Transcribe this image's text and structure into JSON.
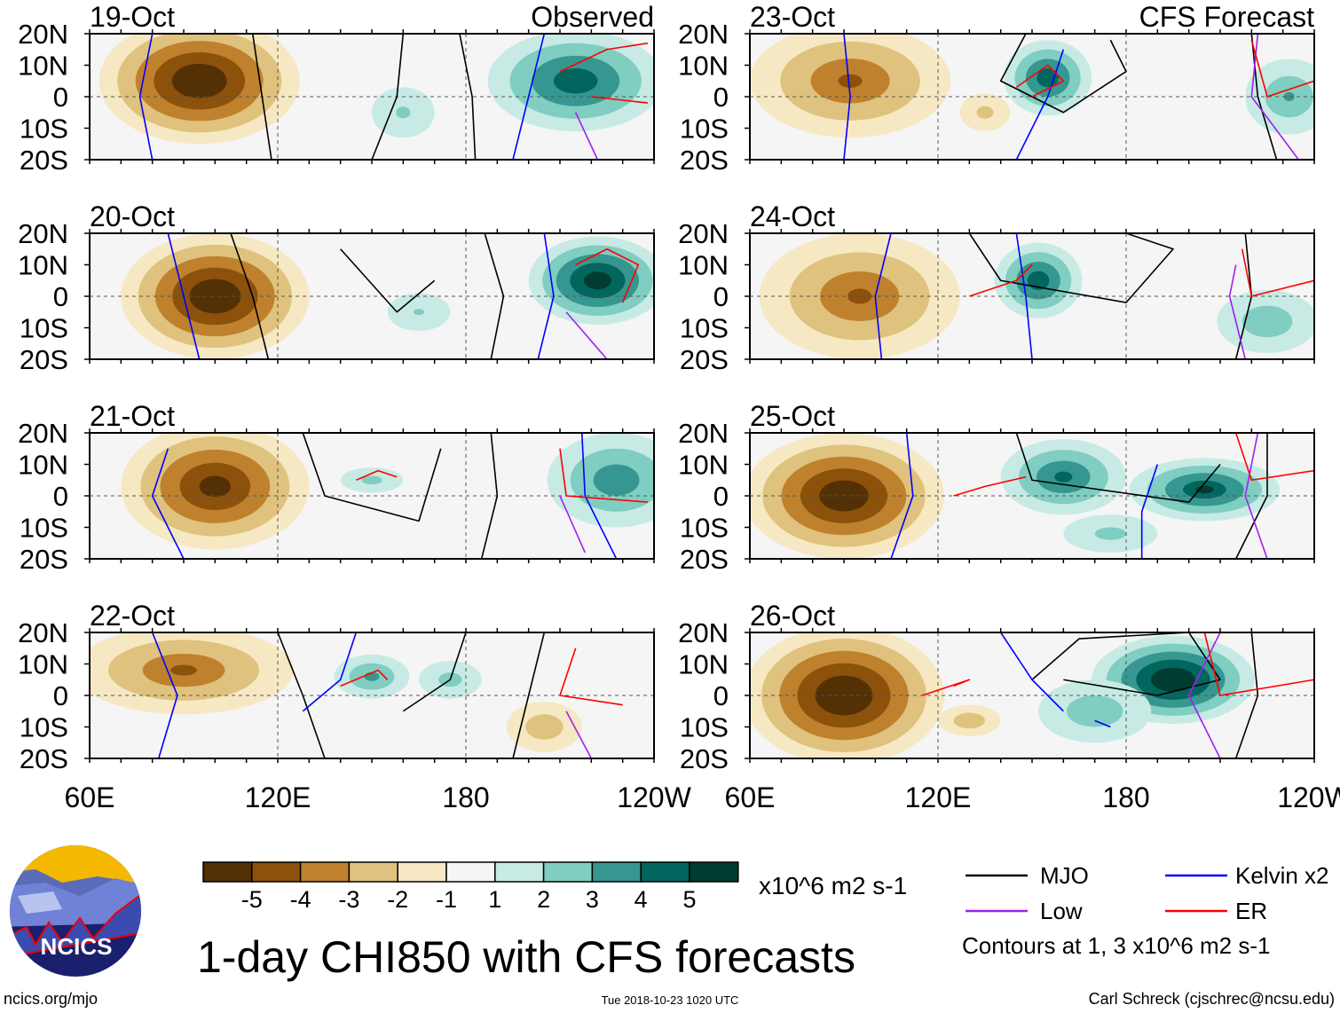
{
  "chart_data": {
    "type": "heatmap",
    "title": "1-day CHI850 with CFS forecasts",
    "units": "x10^6 m2 s-1",
    "lon_range": [
      60,
      240
    ],
    "lat_range": [
      -20,
      20
    ],
    "lat_ticks": [
      "20N",
      "10N",
      "0",
      "10S",
      "20S"
    ],
    "lon_ticks": [
      "60E",
      "120E",
      "180",
      "120W"
    ],
    "colorbar": {
      "labels": [
        "-5",
        "-4",
        "-3",
        "-2",
        "-1",
        "1",
        "2",
        "3",
        "4",
        "5"
      ],
      "colors": [
        "#543005",
        "#8c510a",
        "#bf812d",
        "#dfc27d",
        "#f6e8c3",
        "#f5f5f5",
        "#c7eae5",
        "#80cdc1",
        "#35978f",
        "#01665e",
        "#003c30"
      ]
    },
    "legend": [
      {
        "label": "MJO",
        "color": "#000000"
      },
      {
        "label": "Kelvin x2",
        "color": "#0000ff"
      },
      {
        "label": "Low",
        "color": "#a020f0"
      },
      {
        "label": "ER",
        "color": "#ff0000"
      }
    ],
    "contour_note": "Contours at 1, 3 x10^6 m2 s-1",
    "panels": [
      {
        "date": "19-Oct",
        "source": "Observed",
        "features": [
          [
            95,
            5,
            -5.5,
            32,
            20
          ],
          [
            215,
            5,
            4,
            28,
            16
          ],
          [
            160,
            -5,
            1.3,
            10,
            8
          ]
        ],
        "mjo": [
          [
            [
              112,
              20
            ],
            [
              115,
              0
            ],
            [
              118,
              -20
            ]
          ],
          [
            [
              160,
              20
            ],
            [
              158,
              0
            ],
            [
              150,
              -20
            ]
          ],
          [
            [
              178,
              20
            ],
            [
              182,
              0
            ],
            [
              183,
              -20
            ]
          ]
        ],
        "kelvin": [
          [
            [
              80,
              20
            ],
            [
              76,
              0
            ],
            [
              80,
              -20
            ]
          ],
          [
            [
              205,
              20
            ],
            [
              200,
              0
            ],
            [
              195,
              -20
            ]
          ]
        ],
        "er": [
          [
            [
              210,
              8
            ],
            [
              225,
              15
            ],
            [
              238,
              17
            ]
          ],
          [
            [
              220,
              0
            ],
            [
              238,
              -2
            ]
          ]
        ],
        "low": [
          [
            [
              215,
              -5
            ],
            [
              222,
              -20
            ]
          ]
        ]
      },
      {
        "date": "20-Oct",
        "source": "",
        "features": [
          [
            100,
            0,
            -5.5,
            30,
            20
          ],
          [
            222,
            5,
            5,
            22,
            14
          ],
          [
            165,
            -5,
            1.2,
            10,
            6
          ]
        ],
        "mjo": [
          [
            [
              105,
              20
            ],
            [
              112,
              0
            ],
            [
              117,
              -20
            ]
          ],
          [
            [
              140,
              15
            ],
            [
              158,
              -5
            ],
            [
              170,
              5
            ]
          ],
          [
            [
              186,
              20
            ],
            [
              192,
              0
            ],
            [
              188,
              -20
            ]
          ]
        ],
        "kelvin": [
          [
            [
              85,
              20
            ],
            [
              90,
              0
            ],
            [
              95,
              -20
            ]
          ],
          [
            [
              205,
              20
            ],
            [
              208,
              0
            ],
            [
              203,
              -20
            ]
          ]
        ],
        "er": [
          [
            [
              215,
              10
            ],
            [
              225,
              15
            ],
            [
              235,
              10
            ],
            [
              230,
              -2
            ]
          ]
        ],
        "low": [
          [
            [
              212,
              -5
            ],
            [
              225,
              -20
            ]
          ]
        ]
      },
      {
        "date": "21-Oct",
        "source": "",
        "features": [
          [
            100,
            3,
            -4.8,
            30,
            20
          ],
          [
            228,
            5,
            3,
            22,
            15
          ],
          [
            150,
            5,
            1.5,
            10,
            4
          ]
        ],
        "mjo": [
          [
            [
              128,
              20
            ],
            [
              135,
              0
            ],
            [
              165,
              -8
            ],
            [
              172,
              15
            ]
          ],
          [
            [
              188,
              20
            ],
            [
              190,
              0
            ],
            [
              185,
              -20
            ]
          ]
        ],
        "kelvin": [
          [
            [
              85,
              15
            ],
            [
              80,
              0
            ],
            [
              90,
              -20
            ]
          ],
          [
            [
              217,
              20
            ],
            [
              218,
              0
            ],
            [
              228,
              -20
            ]
          ]
        ],
        "er": [
          [
            [
              145,
              5
            ],
            [
              152,
              8
            ],
            [
              158,
              6
            ]
          ],
          [
            [
              210,
              15
            ],
            [
              212,
              0
            ],
            [
              238,
              -2
            ]
          ]
        ],
        "low": [
          [
            [
              210,
              0
            ],
            [
              218,
              -18
            ]
          ]
        ]
      },
      {
        "date": "22-Oct",
        "source": "",
        "features": [
          [
            90,
            8,
            -3.2,
            35,
            14
          ],
          [
            150,
            6,
            2.5,
            12,
            7
          ],
          [
            175,
            5,
            1.6,
            10,
            6
          ],
          [
            205,
            -10,
            -2,
            12,
            8
          ]
        ],
        "mjo": [
          [
            [
              120,
              20
            ],
            [
              128,
              0
            ],
            [
              135,
              -20
            ]
          ],
          [
            [
              160,
              -5
            ],
            [
              175,
              5
            ],
            [
              180,
              20
            ]
          ],
          [
            [
              205,
              20
            ],
            [
              200,
              0
            ],
            [
              195,
              -20
            ]
          ]
        ],
        "kelvin": [
          [
            [
              80,
              20
            ],
            [
              88,
              0
            ],
            [
              82,
              -20
            ]
          ],
          [
            [
              145,
              20
            ],
            [
              140,
              5
            ],
            [
              128,
              -5
            ]
          ]
        ],
        "er": [
          [
            [
              140,
              3
            ],
            [
              152,
              8
            ],
            [
              155,
              5
            ]
          ],
          [
            [
              215,
              15
            ],
            [
              210,
              0
            ],
            [
              230,
              -3
            ]
          ]
        ],
        "low": [
          [
            [
              212,
              -5
            ],
            [
              220,
              -20
            ]
          ]
        ]
      },
      {
        "date": "23-Oct",
        "source": "CFS Forecast",
        "features": [
          [
            92,
            5,
            -3.3,
            32,
            18
          ],
          [
            155,
            6,
            4,
            14,
            12
          ],
          [
            232,
            0,
            2.2,
            14,
            12
          ],
          [
            135,
            -5,
            -1.5,
            8,
            6
          ]
        ],
        "mjo": [
          [
            [
              148,
              20
            ],
            [
              140,
              5
            ],
            [
              160,
              -5
            ],
            [
              180,
              8
            ],
            [
              175,
              18
            ]
          ],
          [
            [
              220,
              20
            ],
            [
              222,
              0
            ],
            [
              228,
              -20
            ]
          ]
        ],
        "kelvin": [
          [
            [
              90,
              20
            ],
            [
              92,
              0
            ],
            [
              90,
              -20
            ]
          ],
          [
            [
              160,
              15
            ],
            [
              155,
              0
            ],
            [
              145,
              -20
            ]
          ]
        ],
        "er": [
          [
            [
              145,
              3
            ],
            [
              155,
              10
            ],
            [
              160,
              5
            ],
            [
              150,
              0
            ]
          ],
          [
            [
              220,
              18
            ],
            [
              225,
              0
            ],
            [
              240,
              5
            ]
          ]
        ],
        "low": [
          [
            [
              222,
              20
            ],
            [
              220,
              0
            ],
            [
              235,
              -20
            ]
          ]
        ]
      },
      {
        "date": "24-Oct",
        "source": "",
        "features": [
          [
            95,
            0,
            -3.3,
            32,
            20
          ],
          [
            152,
            5,
            4,
            14,
            12
          ],
          [
            225,
            -8,
            2,
            16,
            10
          ]
        ],
        "mjo": [
          [
            [
              130,
              20
            ],
            [
              140,
              5
            ],
            [
              180,
              -2
            ],
            [
              195,
              15
            ],
            [
              180,
              20
            ]
          ],
          [
            [
              218,
              20
            ],
            [
              220,
              0
            ],
            [
              215,
              -20
            ]
          ]
        ],
        "kelvin": [
          [
            [
              105,
              20
            ],
            [
              100,
              0
            ],
            [
              102,
              -20
            ]
          ],
          [
            [
              145,
              20
            ],
            [
              148,
              0
            ],
            [
              150,
              -20
            ]
          ]
        ],
        "er": [
          [
            [
              130,
              0
            ],
            [
              145,
              5
            ],
            [
              150,
              10
            ]
          ],
          [
            [
              217,
              15
            ],
            [
              220,
              0
            ],
            [
              240,
              5
            ]
          ]
        ],
        "low": [
          [
            [
              215,
              10
            ],
            [
              213,
              0
            ],
            [
              218,
              -20
            ]
          ]
        ]
      },
      {
        "date": "25-Oct",
        "source": "",
        "features": [
          [
            90,
            0,
            -5.3,
            32,
            20
          ],
          [
            160,
            6,
            3.5,
            20,
            12
          ],
          [
            205,
            2,
            4.2,
            24,
            10
          ],
          [
            175,
            -12,
            1.5,
            15,
            6
          ]
        ],
        "mjo": [
          [
            [
              145,
              20
            ],
            [
              150,
              5
            ],
            [
              200,
              -2
            ],
            [
              210,
              10
            ]
          ],
          [
            [
              225,
              20
            ],
            [
              225,
              0
            ],
            [
              215,
              -20
            ]
          ]
        ],
        "kelvin": [
          [
            [
              110,
              20
            ],
            [
              112,
              0
            ],
            [
              105,
              -20
            ]
          ],
          [
            [
              190,
              10
            ],
            [
              185,
              -5
            ],
            [
              185,
              -20
            ]
          ]
        ],
        "er": [
          [
            [
              125,
              0
            ],
            [
              135,
              3
            ],
            [
              148,
              6
            ]
          ],
          [
            [
              215,
              20
            ],
            [
              220,
              5
            ],
            [
              240,
              8
            ]
          ]
        ],
        "low": [
          [
            [
              222,
              20
            ],
            [
              218,
              0
            ],
            [
              225,
              -20
            ]
          ]
        ]
      },
      {
        "date": "26-Oct",
        "source": "",
        "features": [
          [
            90,
            0,
            -5.6,
            32,
            22
          ],
          [
            195,
            5,
            5.5,
            26,
            14
          ],
          [
            170,
            -5,
            2,
            18,
            10
          ],
          [
            130,
            -8,
            -2,
            10,
            5
          ]
        ],
        "mjo": [
          [
            [
              150,
              5
            ],
            [
              165,
              18
            ],
            [
              200,
              20
            ],
            [
              210,
              5
            ],
            [
              190,
              0
            ],
            [
              160,
              5
            ]
          ],
          [
            [
              220,
              20
            ],
            [
              222,
              0
            ],
            [
              215,
              -20
            ]
          ]
        ],
        "kelvin": [
          [
            [
              140,
              20
            ],
            [
              150,
              5
            ],
            [
              160,
              -5
            ]
          ],
          [
            [
              170,
              -8
            ],
            [
              175,
              -10
            ]
          ]
        ],
        "er": [
          [
            [
              115,
              0
            ],
            [
              130,
              5
            ],
            [
              125,
              3
            ]
          ],
          [
            [
              205,
              20
            ],
            [
              210,
              0
            ],
            [
              240,
              5
            ]
          ]
        ],
        "low": [
          [
            [
              210,
              20
            ],
            [
              200,
              0
            ],
            [
              210,
              -20
            ]
          ]
        ]
      }
    ]
  },
  "logo_text": "NCICS",
  "footer": {
    "url": "ncics.org/mjo",
    "timestamp": "Tue 2018-10-23 1020 UTC",
    "author": "Carl Schreck (cjschrec@ncsu.edu)"
  }
}
